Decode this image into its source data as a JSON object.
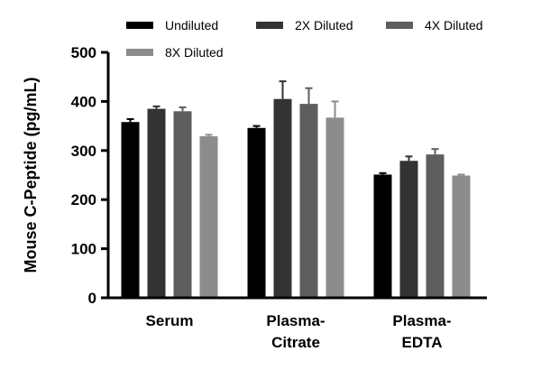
{
  "chart_data": {
    "type": "bar",
    "title": "",
    "xlabel": "",
    "ylabel": "Mouse C-Peptide (pg/mL)",
    "ylim": [
      0,
      500
    ],
    "yticks": [
      0,
      100,
      200,
      300,
      400,
      500
    ],
    "categories": [
      [
        "Serum"
      ],
      [
        "Plasma-",
        "Citrate"
      ],
      [
        "Plasma-",
        "EDTA"
      ]
    ],
    "legend_position": "top",
    "grid": false,
    "series": [
      {
        "name": "Undiluted",
        "color": "#000000",
        "values": [
          358,
          346,
          251
        ],
        "errors": [
          6,
          4,
          3
        ]
      },
      {
        "name": "2X Diluted",
        "color": "#333333",
        "values": [
          385,
          405,
          279
        ],
        "errors": [
          5,
          36,
          9
        ]
      },
      {
        "name": "4X Diluted",
        "color": "#5e5e5e",
        "values": [
          380,
          395,
          292
        ],
        "errors": [
          8,
          32,
          11
        ]
      },
      {
        "name": "8X Diluted",
        "color": "#8c8c8c",
        "values": [
          329,
          367,
          249
        ],
        "errors": [
          3,
          33,
          2
        ]
      }
    ]
  }
}
